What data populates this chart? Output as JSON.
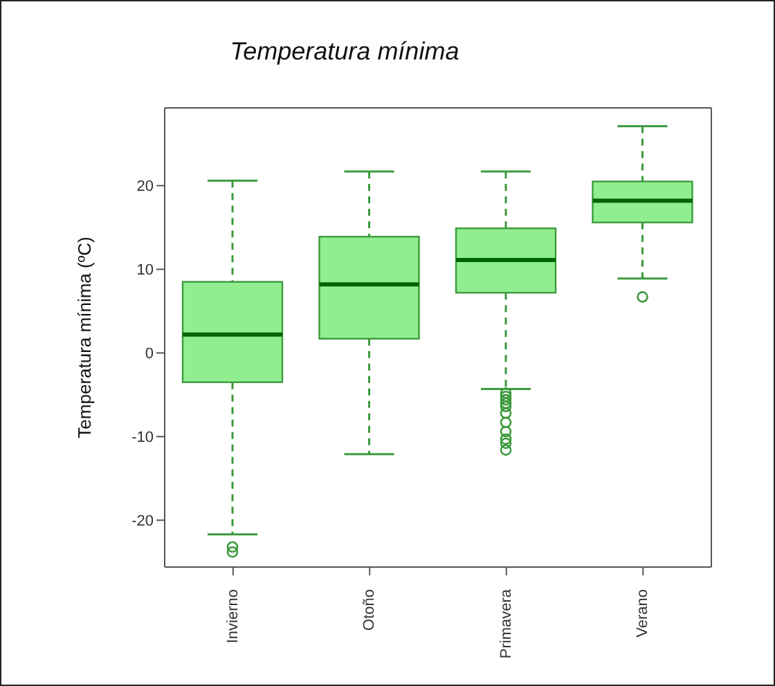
{
  "chart_data": {
    "type": "box",
    "title": "Temperatura mínima",
    "ylabel": "Temperatura mínima (ºC)",
    "categories": [
      "Invierno",
      "Otoño",
      "Primavera",
      "Verano"
    ],
    "color": "#90ee90",
    "ylim": [
      -25.6,
      29.3
    ],
    "yticks": [
      -20,
      -10,
      0,
      10,
      20
    ],
    "boxes": [
      {
        "low": -21.7,
        "q1": -3.5,
        "median": 2.2,
        "q3": 8.5,
        "high": 20.6,
        "outliers": [
          -23.2,
          -23.8
        ]
      },
      {
        "low": -12.1,
        "q1": 1.7,
        "median": 8.2,
        "q3": 13.9,
        "high": 21.7
      },
      {
        "low": -4.3,
        "q1": 7.2,
        "median": 11.1,
        "q3": 14.9,
        "high": 21.7,
        "outliers": [
          -4.8,
          -5.2,
          -5.6,
          -6.0,
          -6.4,
          -7.2,
          -8.3,
          -9.4,
          -10.3,
          -10.8,
          -11.6
        ]
      },
      {
        "low": 8.9,
        "q1": 15.6,
        "median": 18.2,
        "q3": 20.5,
        "high": 27.1,
        "outliers": [
          6.7
        ]
      }
    ]
  }
}
